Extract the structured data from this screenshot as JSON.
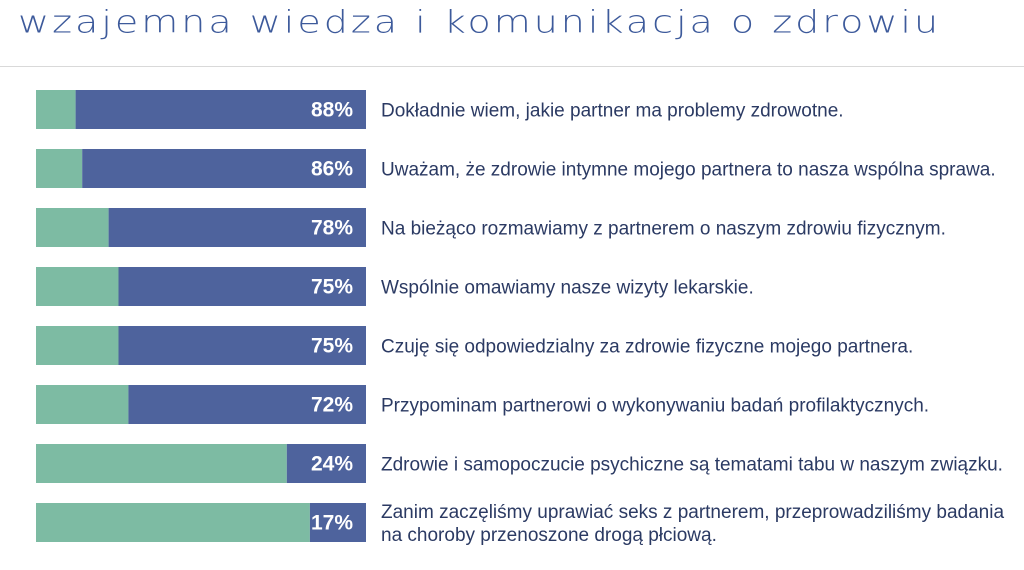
{
  "title": "wzajemna wiedza i komunikacja o zdrowiu",
  "colors": {
    "primary": "#4e639d",
    "secondary": "#7dbba3",
    "title": "#3d5a9b",
    "text": "#2b3a63"
  },
  "chart_data": {
    "type": "bar",
    "orientation": "horizontal",
    "stacked": true,
    "title": "wzajemna wiedza i komunikacja o zdrowiu",
    "xlim": [
      0,
      100
    ],
    "categories": [
      [
        "Dokładnie wiem, jakie partner ma problemy zdrowotne."
      ],
      [
        "Uważam, że zdrowie intymne mojego partnera to nasza wspólna sprawa."
      ],
      [
        "Na bieżąco rozmawiamy z partnerem o naszym zdrowiu fizycznym."
      ],
      [
        "Wspólnie omawiamy nasze wizyty lekarskie."
      ],
      [
        "Czuję się odpowiedzialny za zdrowie fizyczne mojego partnera."
      ],
      [
        "Przypominam partnerowi o wykonywaniu badań profilaktycznych."
      ],
      [
        "Zdrowie i samopoczucie psychiczne są tematami tabu w naszym związku."
      ],
      [
        "Zanim zaczęliśmy uprawiać seks z partnerem, przeprowadziliśmy badania",
        "na choroby przenoszone drogą płciową."
      ]
    ],
    "values": [
      88,
      86,
      78,
      75,
      75,
      72,
      24,
      17
    ],
    "value_labels": [
      "88%",
      "86%",
      "78%",
      "75%",
      "75%",
      "72%",
      "24%",
      "17%"
    ],
    "legend": "none",
    "grid": false
  }
}
